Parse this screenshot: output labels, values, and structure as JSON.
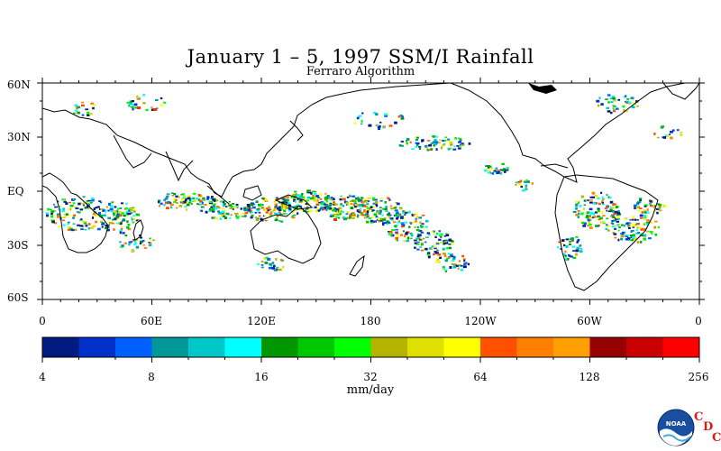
{
  "title": "January 1 – 5, 1997 SSM/I Rainfall",
  "subtitle": "Ferraro Algorithm",
  "map": {
    "lat_labels": [
      "60N",
      "30N",
      "EQ",
      "30S",
      "60S"
    ],
    "lon_labels": [
      "0",
      "60E",
      "120E",
      "180",
      "120W",
      "60W",
      "0"
    ]
  },
  "colorbar": {
    "colors": [
      "#001a80",
      "#0030c8",
      "#0060ff",
      "#009898",
      "#00c8c8",
      "#00ffff",
      "#009600",
      "#00c800",
      "#00ff00",
      "#b4b400",
      "#e0e000",
      "#ffff00",
      "#ff5000",
      "#ff8000",
      "#ffa000",
      "#960000",
      "#c80000",
      "#ff0000"
    ],
    "tick_labels": [
      "4",
      "8",
      "16",
      "32",
      "64",
      "128",
      "256"
    ],
    "units": "mm/day"
  },
  "logo": {
    "agency": "NOAA",
    "letters": [
      "C",
      "D",
      "C"
    ]
  }
}
